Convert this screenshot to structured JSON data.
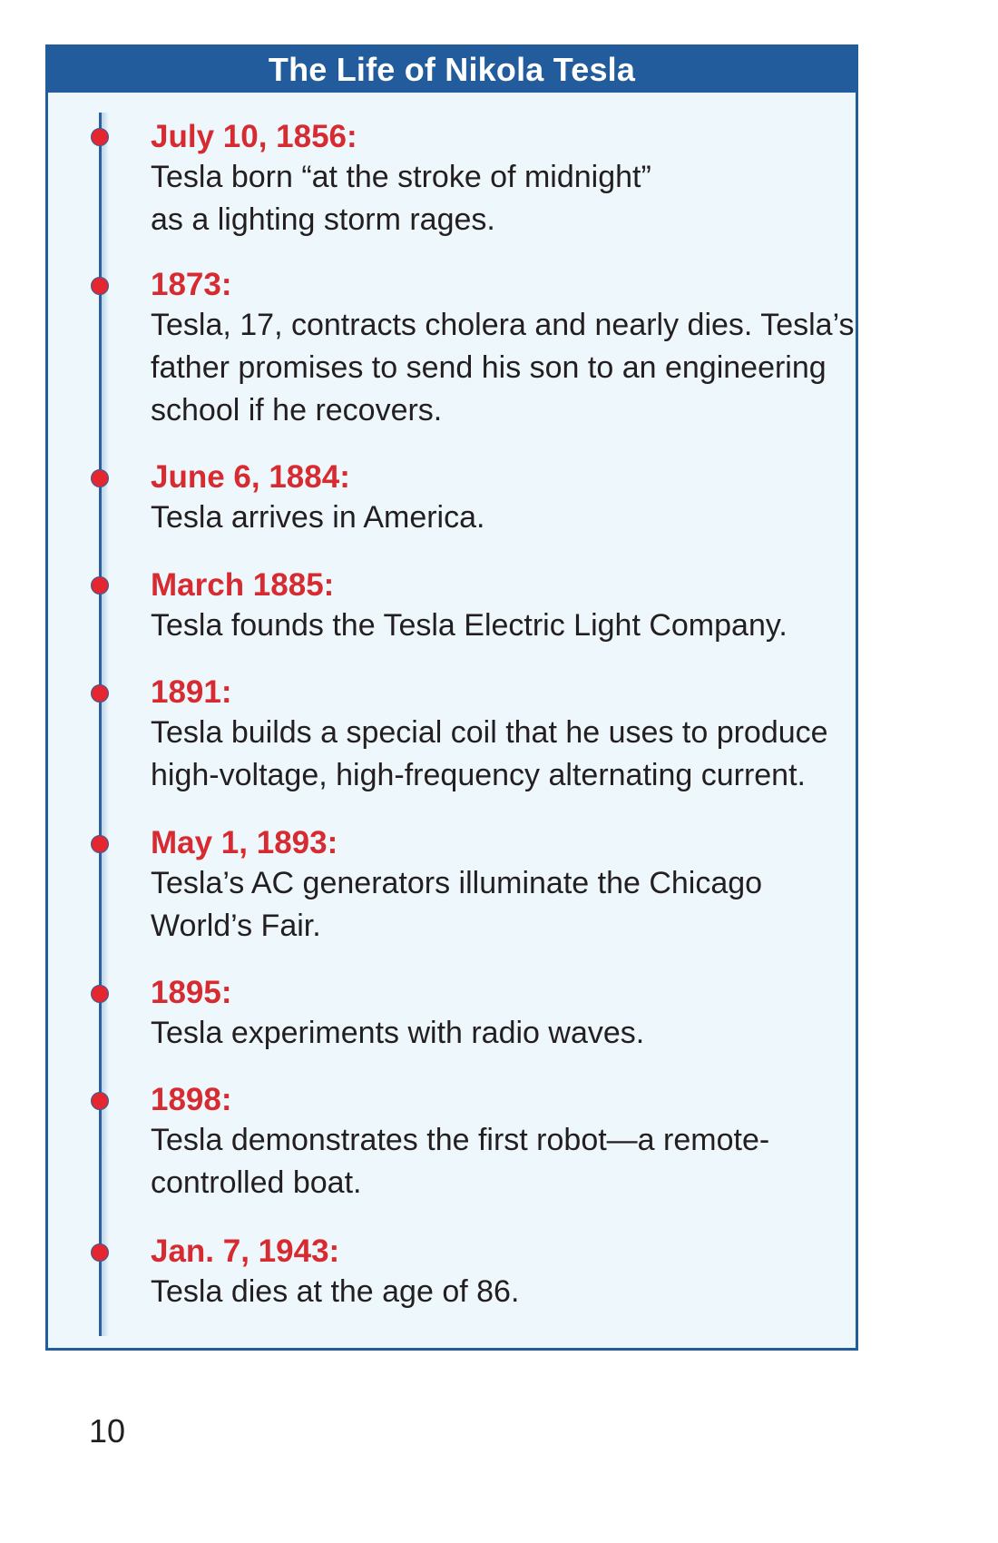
{
  "panel": {
    "title": "The Life of Nikola Tesla",
    "colors": {
      "header": "#235c9c",
      "date": "#d72b32",
      "background": "#eef7fb"
    }
  },
  "events": [
    {
      "date": "July 10, 1856:",
      "lines": [
        "Tesla born “at the stroke of midnight”",
        "as a lighting storm rages."
      ]
    },
    {
      "date": "1873:",
      "lines": [
        "Tesla, 17, contracts cholera and nearly dies. Tesla’s",
        "father promises to send his son to an engineering",
        "school if he recovers."
      ]
    },
    {
      "date": "June 6, 1884:",
      "lines": [
        "Tesla arrives in America."
      ]
    },
    {
      "date": "March 1885:",
      "lines": [
        "Tesla founds the Tesla Electric Light Company."
      ]
    },
    {
      "date": "1891:",
      "lines": [
        "Tesla builds a special coil that he uses to produce",
        "high-voltage, high-frequency alternating current."
      ]
    },
    {
      "date": "May 1, 1893:",
      "lines": [
        "Tesla’s AC generators illuminate the Chicago",
        "World’s Fair."
      ]
    },
    {
      "date": "1895:",
      "lines": [
        "Tesla experiments with radio waves."
      ]
    },
    {
      "date": "1898:",
      "lines": [
        "Tesla demonstrates the first robot—a remote-",
        "controlled boat."
      ]
    },
    {
      "date": "Jan. 7, 1943:",
      "lines": [
        "Tesla dies at the age of 86."
      ]
    }
  ],
  "page_number": "10"
}
